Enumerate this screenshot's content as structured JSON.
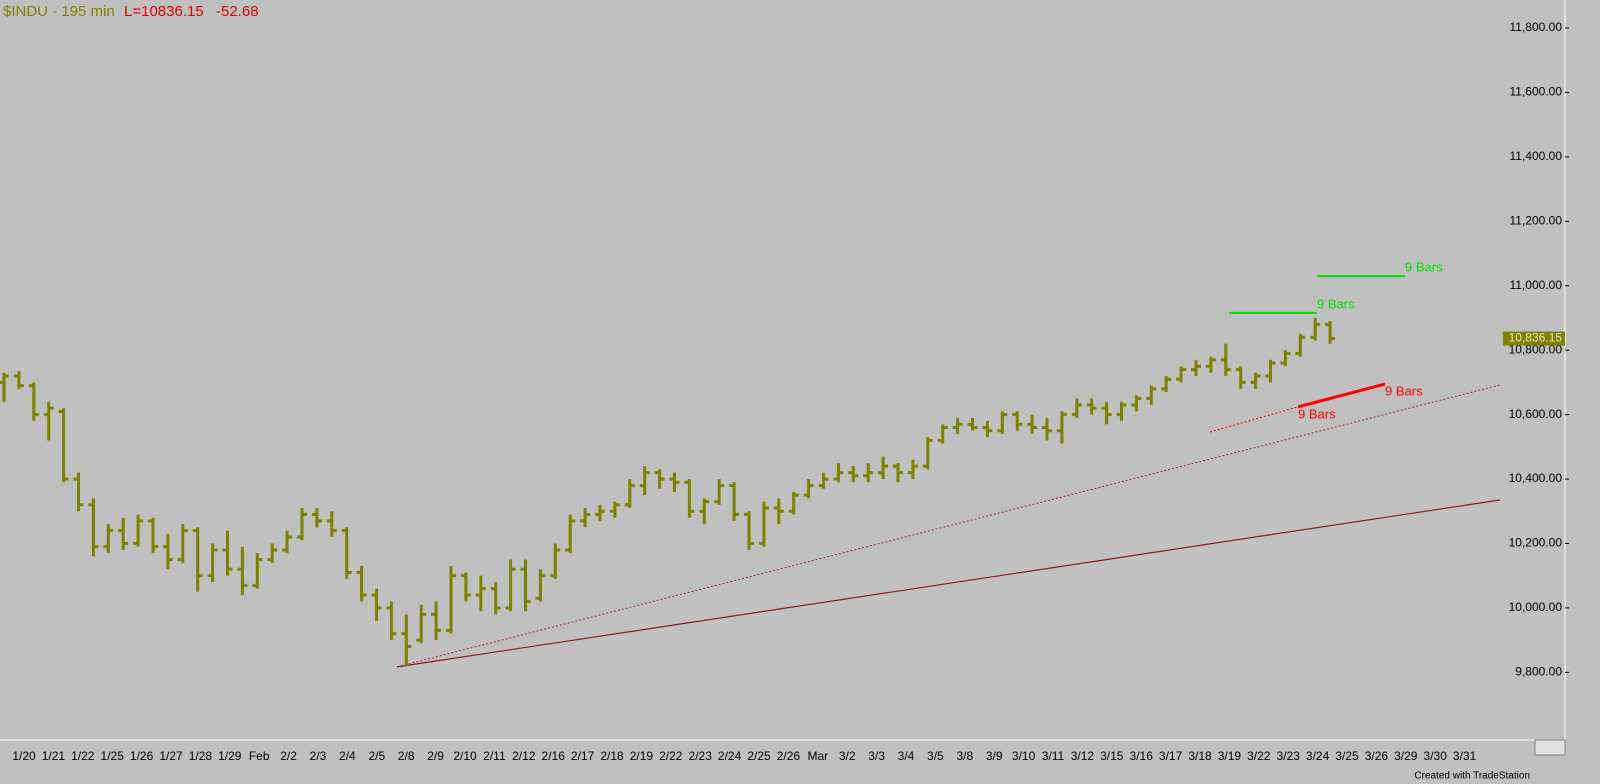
{
  "chart_data": {
    "type": "ohlc",
    "title": "$INDU - 195 min",
    "last_text": "L=10836.15",
    "change_text": "-52.68",
    "last_price_label": "10,836.15",
    "footer": "Created with TradeStation",
    "x_labels": [
      "1/20",
      "1/21",
      "1/22",
      "1/25",
      "1/26",
      "1/27",
      "1/28",
      "1/29",
      "Feb",
      "2/2",
      "2/3",
      "2/4",
      "2/5",
      "2/8",
      "2/9",
      "2/10",
      "2/11",
      "2/12",
      "2/16",
      "2/17",
      "2/18",
      "2/19",
      "2/22",
      "2/23",
      "2/24",
      "2/25",
      "2/26",
      "Mar",
      "3/2",
      "3/3",
      "3/4",
      "3/5",
      "3/8",
      "3/9",
      "3/10",
      "3/11",
      "3/12",
      "3/15",
      "3/16",
      "3/17",
      "3/18",
      "3/19",
      "3/22",
      "3/23",
      "3/24",
      "3/25",
      "3/26",
      "3/29",
      "3/30",
      "3/31"
    ],
    "ylim": [
      9590,
      11887
    ],
    "yticks": [
      {
        "value": 9800,
        "label": "9,800.00"
      },
      {
        "value": 10000,
        "label": "10,000.00"
      },
      {
        "value": 10200,
        "label": "10,200.00"
      },
      {
        "value": 10400,
        "label": "10,400.00"
      },
      {
        "value": 10600,
        "label": "10,600.00"
      },
      {
        "value": 10800,
        "label": "10,800.00"
      },
      {
        "value": 11000,
        "label": "11,000.00"
      },
      {
        "value": 11200,
        "label": "11,200.00"
      },
      {
        "value": 11400,
        "label": "11,400.00"
      },
      {
        "value": 11600,
        "label": "11,600.00"
      },
      {
        "value": 11800,
        "label": "11,800.00"
      }
    ],
    "series": [
      {
        "name": "$INDU",
        "color": "#808000",
        "open": [
          10700,
          10720,
          10690,
          10600,
          10610,
          10400,
          10320,
          10190,
          10240,
          10200,
          10270,
          10190,
          10150,
          10240,
          10100,
          10180,
          10120,
          10070,
          10150,
          10180,
          10220,
          10290,
          10270,
          10240,
          10110,
          10040,
          10000,
          9920,
          9900,
          9980,
          9930,
          10100,
          10040,
          10060,
          10000,
          10120,
          10030,
          10100,
          10180,
          10270,
          10290,
          10300,
          10320,
          10380,
          10420,
          10400,
          10390,
          10300,
          10330,
          10380,
          10290,
          10200,
          10310,
          10300,
          10350,
          10380,
          10400,
          10420,
          10410,
          10420,
          10440,
          10420,
          10440,
          10520,
          10560,
          10570,
          10560,
          10550,
          10600,
          10570,
          10560,
          10550,
          10600,
          10630,
          10620,
          10600,
          10630,
          10650,
          10680,
          10710,
          10740,
          10750,
          10770,
          10740,
          10700,
          10720,
          10760,
          10790,
          10840,
          10880
        ],
        "high": [
          10730,
          10735,
          10700,
          10640,
          10620,
          10420,
          10340,
          10260,
          10280,
          10290,
          10280,
          10230,
          10260,
          10250,
          10200,
          10240,
          10190,
          10170,
          10200,
          10240,
          10310,
          10310,
          10300,
          10250,
          10130,
          10060,
          10020,
          9980,
          10010,
          10020,
          10130,
          10110,
          10100,
          10080,
          10150,
          10150,
          10120,
          10200,
          10290,
          10310,
          10320,
          10330,
          10400,
          10440,
          10430,
          10420,
          10400,
          10340,
          10400,
          10390,
          10300,
          10330,
          10340,
          10360,
          10400,
          10420,
          10450,
          10440,
          10450,
          10470,
          10450,
          10460,
          10530,
          10570,
          10590,
          10590,
          10580,
          10610,
          10610,
          10600,
          10590,
          10610,
          10650,
          10650,
          10640,
          10640,
          10660,
          10690,
          10720,
          10750,
          10770,
          10780,
          10820,
          10750,
          10730,
          10770,
          10800,
          10850,
          10900,
          10890
        ],
        "low": [
          10640,
          10680,
          10580,
          10520,
          10390,
          10300,
          10160,
          10170,
          10180,
          10190,
          10170,
          10120,
          10140,
          10050,
          10080,
          10100,
          10040,
          10060,
          10140,
          10170,
          10210,
          10250,
          10220,
          10090,
          10020,
          9960,
          9900,
          9820,
          9890,
          9900,
          9920,
          10020,
          9990,
          9980,
          9990,
          9990,
          10020,
          10090,
          10170,
          10250,
          10270,
          10280,
          10310,
          10350,
          10370,
          10360,
          10280,
          10260,
          10320,
          10270,
          10180,
          10190,
          10260,
          10290,
          10340,
          10370,
          10390,
          10390,
          10390,
          10400,
          10390,
          10400,
          10430,
          10510,
          10540,
          10550,
          10530,
          10540,
          10550,
          10540,
          10520,
          10510,
          10590,
          10600,
          10570,
          10580,
          10610,
          10630,
          10670,
          10700,
          10720,
          10730,
          10720,
          10680,
          10680,
          10700,
          10750,
          10780,
          10830,
          10820
        ],
        "close": [
          10720,
          10690,
          10600,
          10620,
          10400,
          10320,
          10190,
          10240,
          10200,
          10270,
          10190,
          10150,
          10240,
          10100,
          10180,
          10120,
          10070,
          10150,
          10180,
          10220,
          10290,
          10270,
          10240,
          10110,
          10040,
          10000,
          9920,
          9880,
          9980,
          9930,
          10100,
          10040,
          10060,
          10000,
          10120,
          10020,
          10100,
          10180,
          10270,
          10290,
          10300,
          10320,
          10380,
          10420,
          10400,
          10390,
          10300,
          10330,
          10380,
          10290,
          10200,
          10310,
          10300,
          10350,
          10380,
          10400,
          10420,
          10410,
          10420,
          10440,
          10420,
          10440,
          10520,
          10560,
          10570,
          10560,
          10550,
          10600,
          10570,
          10560,
          10550,
          10600,
          10630,
          10620,
          10600,
          10630,
          10650,
          10680,
          10710,
          10740,
          10750,
          10770,
          10740,
          10700,
          10720,
          10760,
          10790,
          10840,
          10880,
          10836.15
        ]
      }
    ],
    "trendlines": [
      {
        "y": [
          9817,
          10692
        ],
        "color": "#b22222",
        "style": "dotted"
      },
      {
        "y": [
          9817,
          10335
        ],
        "color": "#8b1a1a",
        "style": "solid"
      },
      {
        "y": [
          10916,
          10916
        ],
        "color": "#00e000",
        "style": "solid",
        "label": "9 Bars"
      },
      {
        "y": [
          11030,
          11030
        ],
        "color": "#00e000",
        "style": "solid",
        "label": "9 Bars"
      },
      {
        "y": [
          10546,
          10624
        ],
        "color": "#ff0000",
        "style": "dotted",
        "label": "9 Bars"
      },
      {
        "y": [
          10624,
          10695
        ],
        "color": "#ff0000",
        "style": "thick",
        "label": "9 Bars"
      }
    ]
  }
}
